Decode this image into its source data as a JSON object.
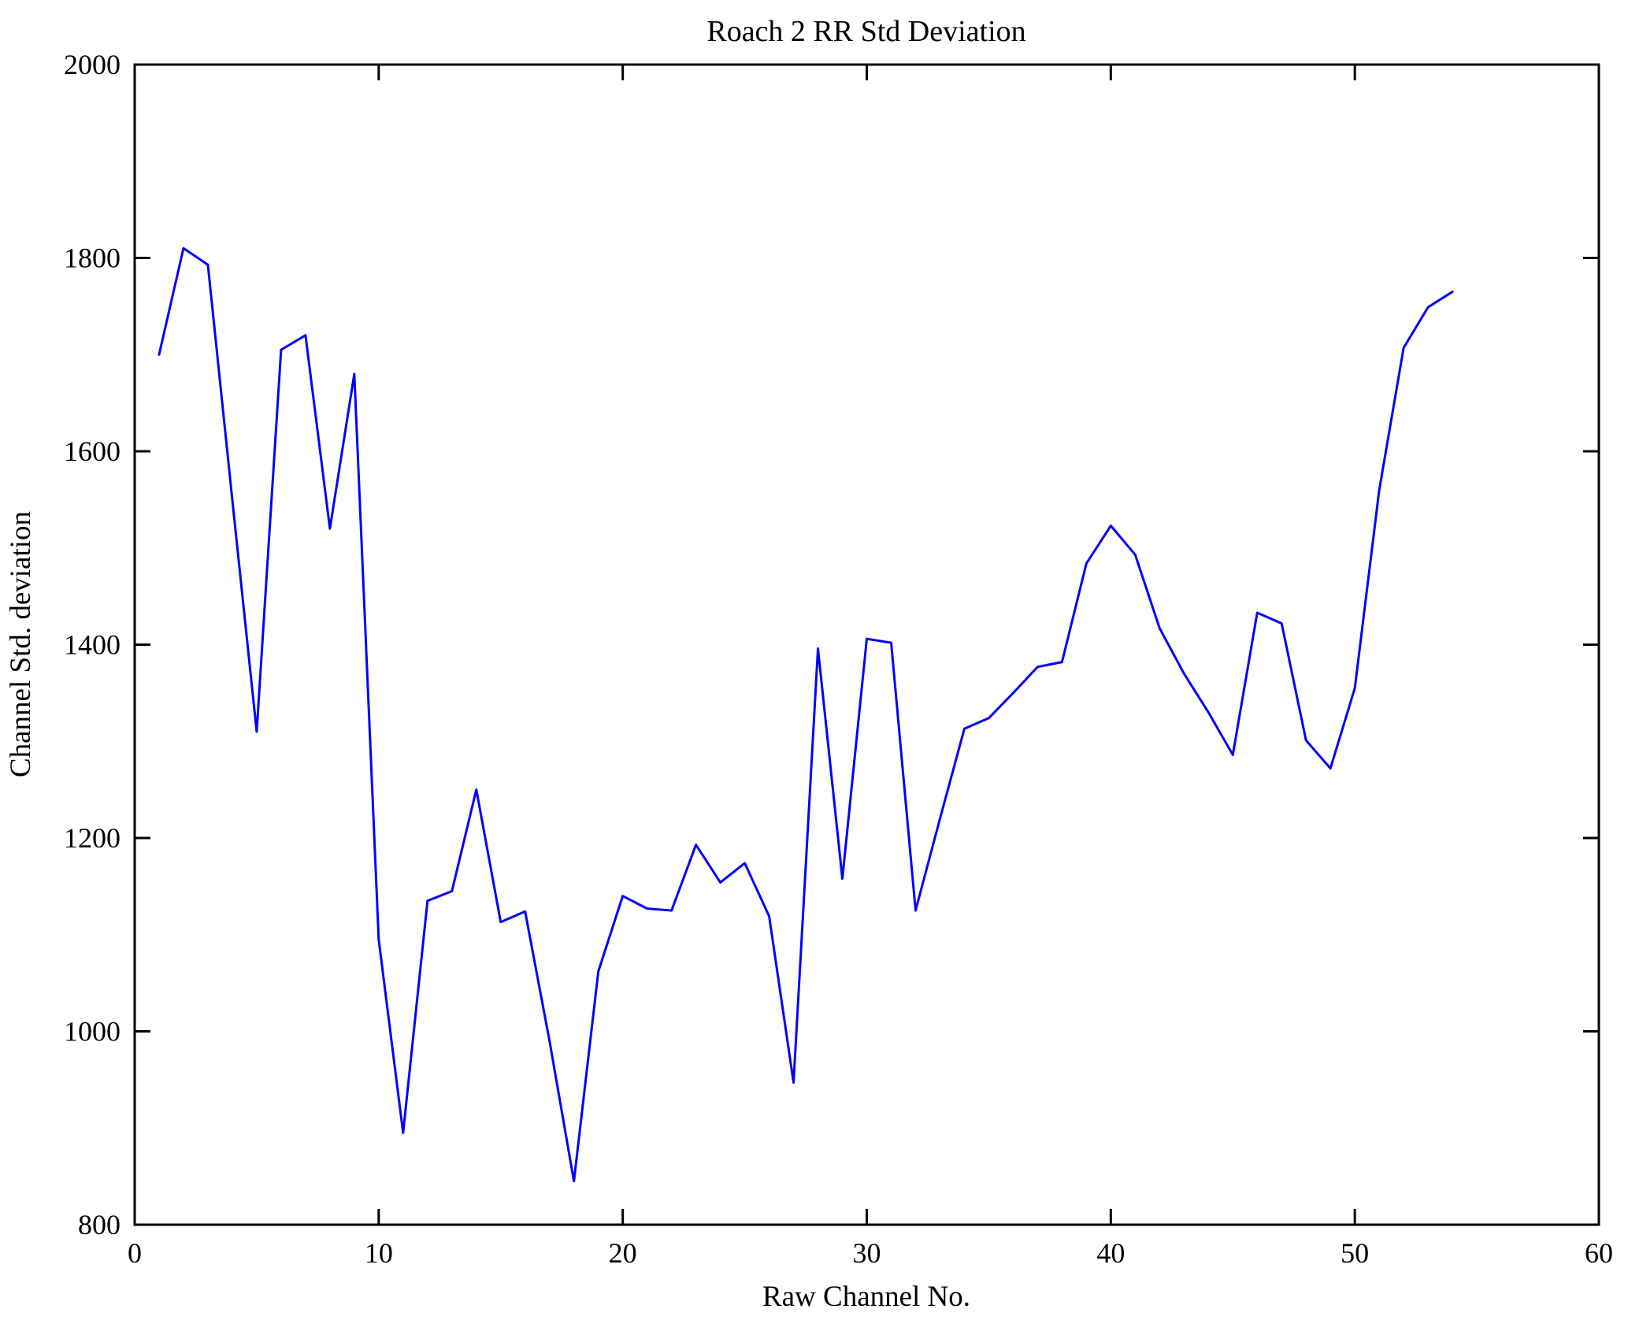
{
  "chart_data": {
    "type": "line",
    "title": "Roach 2 RR Std Deviation",
    "xlabel": "Raw Channel No.",
    "ylabel": "Channel Std. deviation",
    "xlim": [
      0,
      60
    ],
    "ylim": [
      800,
      2000
    ],
    "xticks": [
      0,
      10,
      20,
      30,
      40,
      50,
      60
    ],
    "yticks": [
      800,
      1000,
      1200,
      1400,
      1600,
      1800,
      2000
    ],
    "grid": false,
    "legend": null,
    "line_color": "#0000ff",
    "axis_color": "#000000",
    "background_color": "#ffffff",
    "x": [
      1,
      2,
      3,
      4,
      5,
      6,
      7,
      8,
      9,
      10,
      11,
      12,
      13,
      14,
      15,
      16,
      17,
      18,
      19,
      20,
      21,
      22,
      23,
      24,
      25,
      26,
      27,
      28,
      29,
      30,
      31,
      32,
      33,
      34,
      35,
      36,
      37,
      38,
      39,
      40,
      41,
      42,
      43,
      44,
      45,
      46,
      47,
      48,
      49,
      50,
      51,
      52,
      53,
      54
    ],
    "values": [
      1700,
      1810,
      1793,
      1550,
      1310,
      1705,
      1720,
      1520,
      1680,
      1095,
      895,
      1135,
      1145,
      1250,
      1113,
      1124,
      990,
      845,
      1062,
      1140,
      1127,
      1125,
      1193,
      1154,
      1174,
      1119,
      947,
      1396,
      1158,
      1406,
      1402,
      1125,
      1220,
      1313,
      1324,
      1350,
      1377,
      1382,
      1484,
      1523,
      1493,
      1417,
      1370,
      1330,
      1286,
      1433,
      1422,
      1301,
      1272,
      1355,
      1560,
      1707,
      1749,
      1765
    ]
  }
}
